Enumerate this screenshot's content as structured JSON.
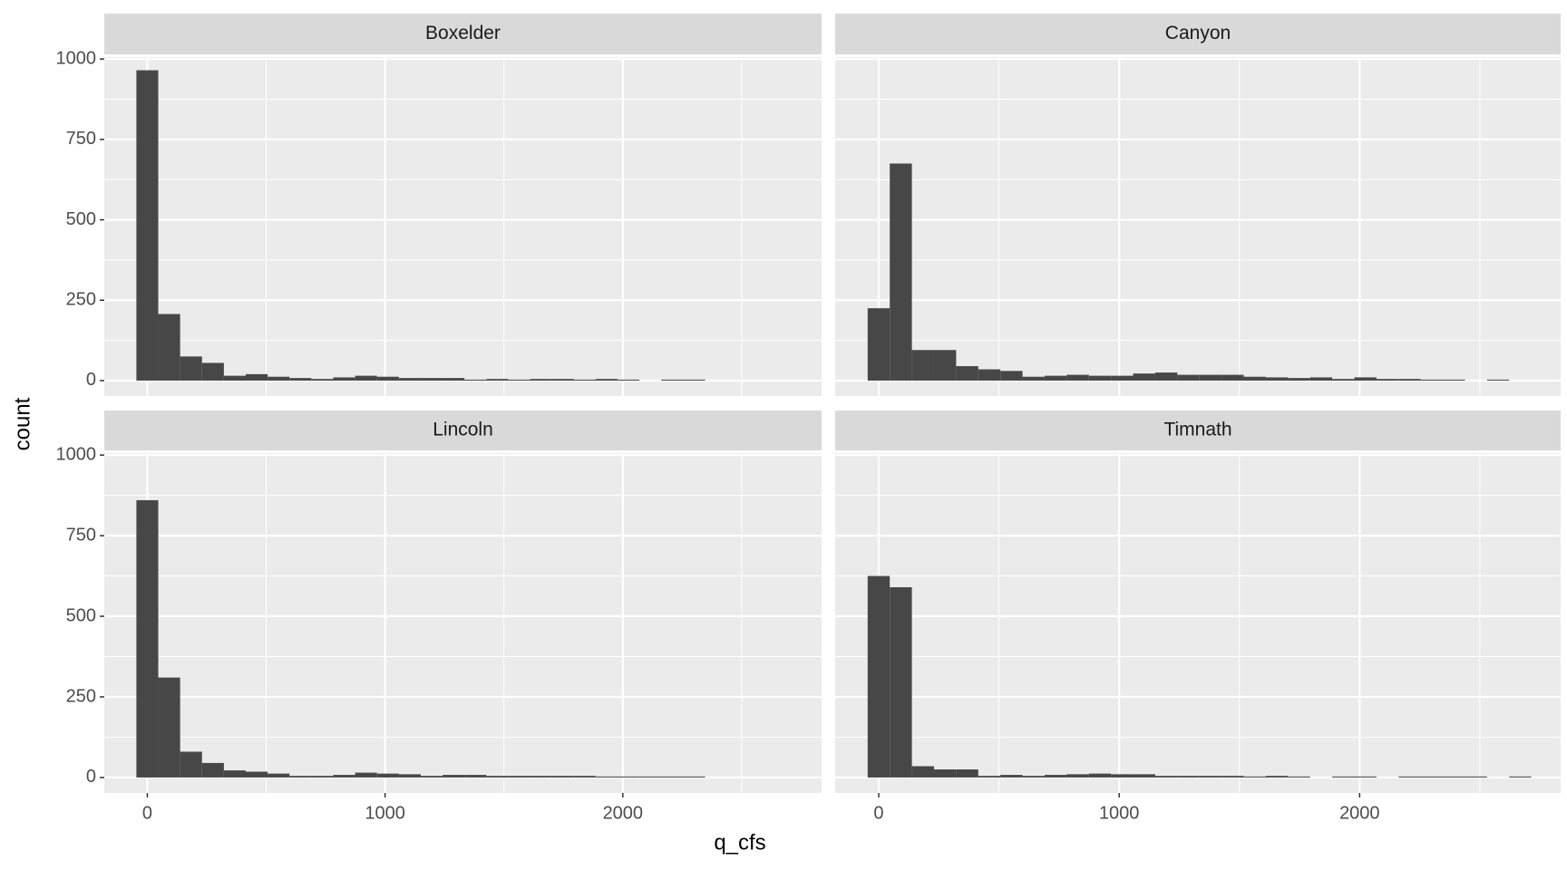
{
  "chart_data": {
    "type": "histogram",
    "color": "#474747",
    "grid": true,
    "xlabel": "q_cfs",
    "ylabel": "count",
    "bins": [
      -46,
      46,
      138,
      230,
      322,
      414,
      506,
      598,
      690,
      782,
      874,
      966,
      1058,
      1150,
      1242,
      1334,
      1426,
      1518,
      1610,
      1702,
      1794,
      1886,
      1978,
      2070,
      2162,
      2254,
      2346,
      2438,
      2530,
      2622,
      2714
    ],
    "xlim": [
      -181,
      2836
    ],
    "xticks": [
      0,
      1000,
      2000
    ],
    "ylim": [
      -48,
      1006
    ],
    "yticks": [
      0,
      250,
      500,
      750,
      1000
    ],
    "facets": [
      {
        "name": "Boxelder",
        "values": [
          965,
          207,
          75,
          55,
          15,
          20,
          12,
          8,
          5,
          10,
          15,
          12,
          8,
          8,
          8,
          3,
          5,
          3,
          5,
          5,
          3,
          5,
          3,
          0,
          3,
          3,
          0,
          0,
          0,
          0
        ]
      },
      {
        "name": "Canyon",
        "values": [
          225,
          675,
          95,
          95,
          45,
          35,
          30,
          12,
          15,
          18,
          15,
          15,
          22,
          25,
          18,
          18,
          18,
          12,
          10,
          8,
          10,
          5,
          10,
          5,
          5,
          3,
          3,
          0,
          3,
          0
        ]
      },
      {
        "name": "Lincoln",
        "values": [
          860,
          310,
          80,
          45,
          22,
          18,
          12,
          5,
          5,
          8,
          15,
          12,
          10,
          5,
          8,
          8,
          5,
          5,
          5,
          5,
          5,
          3,
          3,
          3,
          3,
          3,
          0,
          0,
          0,
          0
        ]
      },
      {
        "name": "Timnath",
        "values": [
          625,
          590,
          35,
          25,
          25,
          5,
          8,
          5,
          8,
          10,
          12,
          10,
          10,
          5,
          5,
          5,
          5,
          3,
          5,
          3,
          0,
          3,
          3,
          0,
          3,
          3,
          3,
          3,
          0,
          3
        ]
      }
    ]
  }
}
